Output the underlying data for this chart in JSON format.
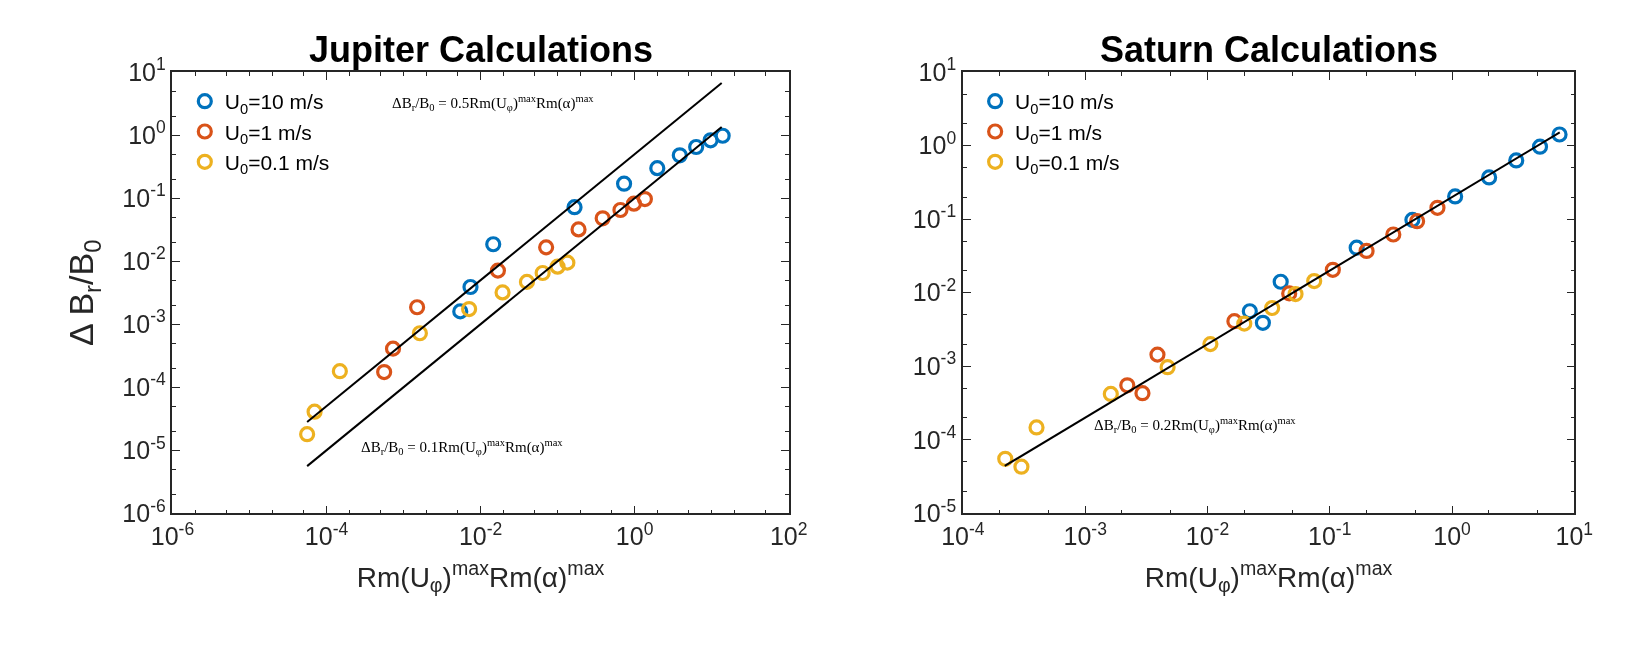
{
  "chart_data": [
    {
      "type": "scatter",
      "title": "Jupiter Calculations",
      "xlabel": "Rm(U$_{φ}$)$^{max}$Rm(α)$^{max}$",
      "ylabel": "Δ B$_{r}$/B$_{0}$",
      "log": "xy",
      "legend": "top left",
      "marker": "circle",
      "xlim": [
        1e-06,
        100
      ],
      "ylim": [
        1e-06,
        10
      ],
      "xticks": [
        {
          "value": 1e-06,
          "label": "10$^{-6}$"
        },
        {
          "value": 0.0001,
          "label": "10$^{-4}$"
        },
        {
          "value": 0.01,
          "label": "10$^{-2}$"
        },
        {
          "value": 1,
          "label": "10$^{0}$"
        },
        {
          "value": 100,
          "label": "10$^{2}$"
        }
      ],
      "yticks": [
        {
          "value": 1e-06,
          "label": "10$^{-6}$"
        },
        {
          "value": 1e-05,
          "label": "10$^{-5}$"
        },
        {
          "value": 0.0001,
          "label": "10$^{-4}$"
        },
        {
          "value": 0.001,
          "label": "10$^{-3}$"
        },
        {
          "value": 0.01,
          "label": "10$^{-2}$"
        },
        {
          "value": 0.1,
          "label": "10$^{-1}$"
        },
        {
          "value": 1,
          "label": "10$^{0}$"
        },
        {
          "value": 10,
          "label": "10$^{1}$"
        }
      ],
      "series": [
        {
          "name": "U$_{0}$=10 m/s",
          "color": "#0072bd",
          "x": [
            0.00545,
            0.0074,
            0.0146,
            0.166,
            0.73,
            1.97,
            3.86,
            6.3,
            9.7,
            13.9
          ],
          "values": [
            0.0016,
            0.0039,
            0.0186,
            0.072,
            0.17,
            0.3,
            0.48,
            0.65,
            0.83,
            0.98
          ]
        },
        {
          "name": "U$_{0}$=1 m/s",
          "color": "#d95319",
          "x": [
            0.00056,
            0.00073,
            0.0015,
            0.0168,
            0.071,
            0.187,
            0.385,
            0.655,
            0.98,
            1.36
          ],
          "values": [
            0.000174,
            0.00041,
            0.00186,
            0.0071,
            0.0166,
            0.032,
            0.048,
            0.065,
            0.082,
            0.097
          ]
        },
        {
          "name": "U$_{0}$=0.1 m/s",
          "color": "#edb120",
          "x": [
            5.6e-05,
            7e-05,
            0.000149,
            0.00163,
            0.0071,
            0.0193,
            0.04,
            0.064,
            0.1,
            0.134
          ],
          "values": [
            1.8e-05,
            4.1e-05,
            0.00018,
            0.00072,
            0.00174,
            0.0032,
            0.0047,
            0.0065,
            0.0082,
            0.0095
          ]
        },
        {
          "type": "line",
          "color": "#000000",
          "marker": "none",
          "x": [
            5.6e-05,
            13.5
          ],
          "values": [
            2.8e-05,
            6.75
          ]
        },
        {
          "type": "line",
          "color": "#000000",
          "marker": "none",
          "x": [
            5.6e-05,
            13.5
          ],
          "values": [
            5.6e-06,
            1.35
          ]
        }
      ],
      "annotations": [
        "ΔB$_{r}$/B$_{0}$ = 0.5Rm(U$_{φ}$)$^{max}$Rm(α)$^{max}$",
        "ΔB$_{r}$/B$_{0}$ = 0.1Rm(U$_{φ}$)$^{max}$Rm(α)$^{max}$"
      ]
    },
    {
      "type": "scatter",
      "title": "Saturn Calculations",
      "xlabel": "Rm(U$_{φ}$)$^{max}$Rm(α)$^{max}$",
      "log": "xy",
      "legend": "top left",
      "marker": "circle",
      "xlim": [
        0.0001,
        10
      ],
      "ylim": [
        1e-05,
        10
      ],
      "xticks": [
        {
          "value": 0.0001,
          "label": "10$^{-4}$"
        },
        {
          "value": 0.001,
          "label": "10$^{-3}$"
        },
        {
          "value": 0.01,
          "label": "10$^{-2}$"
        },
        {
          "value": 0.1,
          "label": "10$^{-1}$"
        },
        {
          "value": 1,
          "label": "10$^{0}$"
        },
        {
          "value": 10,
          "label": "10$^{1}$"
        }
      ],
      "yticks": [
        {
          "value": 1e-05,
          "label": "10$^{-5}$"
        },
        {
          "value": 0.0001,
          "label": "10$^{-4}$"
        },
        {
          "value": 0.001,
          "label": "10$^{-3}$"
        },
        {
          "value": 0.01,
          "label": "10$^{-2}$"
        },
        {
          "value": 0.1,
          "label": "10$^{-1}$"
        },
        {
          "value": 1,
          "label": "10$^{0}$"
        },
        {
          "value": 10,
          "label": "10$^{1}$"
        }
      ],
      "series": [
        {
          "name": "U$_{0}$=10 m/s",
          "color": "#0072bd",
          "x": [
            0.0222,
            0.0284,
            0.0397,
            0.166,
            0.474,
            1.06,
            2.01,
            3.35,
            5.24,
            7.57
          ],
          "values": [
            0.0056,
            0.0039,
            0.0141,
            0.041,
            0.098,
            0.204,
            0.37,
            0.63,
            0.97,
            1.42
          ]
        },
        {
          "name": "U$_{0}$=1 m/s",
          "color": "#d95319",
          "x": [
            0.00221,
            0.00294,
            0.0039,
            0.0166,
            0.0466,
            0.106,
            0.2,
            0.331,
            0.518,
            0.76
          ],
          "values": [
            0.00055,
            0.00043,
            0.00144,
            0.0041,
            0.0098,
            0.0205,
            0.037,
            0.062,
            0.094,
            0.143
          ]
        },
        {
          "name": "U$_{0}$=0.1 m/s",
          "color": "#edb120",
          "x": [
            0.000222,
            0.000301,
            0.0004,
            0.00162,
            0.00472,
            0.01057,
            0.02,
            0.0338,
            0.0525,
            0.0746
          ],
          "values": [
            5.5e-05,
            4.3e-05,
            0.000147,
            0.00042,
            0.00097,
            0.002,
            0.0038,
            0.0062,
            0.0096,
            0.0144
          ]
        },
        {
          "type": "line",
          "color": "#000000",
          "marker": "none",
          "x": [
            0.00022,
            7.6
          ],
          "values": [
            4.4e-05,
            1.52
          ]
        }
      ],
      "annotations": [
        "ΔB$_{r}$/B$_{0}$ = 0.2Rm(U$_{φ}$)$^{max}$Rm(α)$^{max}$"
      ]
    }
  ]
}
